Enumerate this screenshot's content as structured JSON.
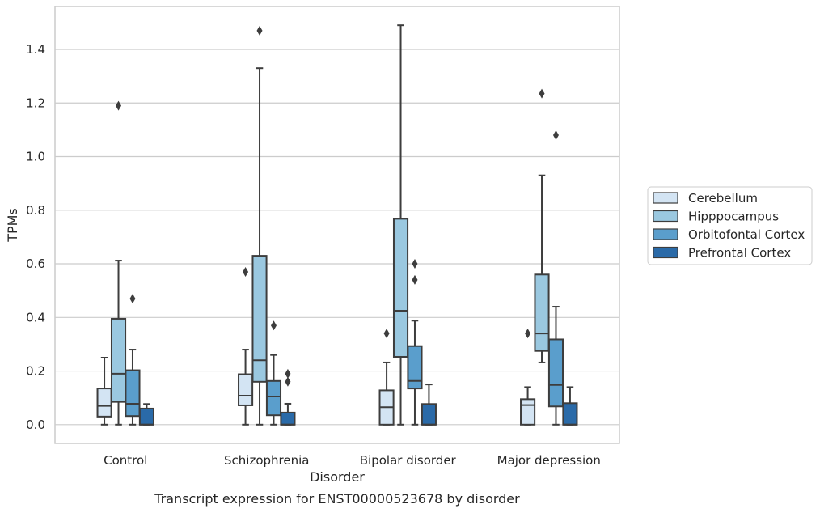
{
  "chart_data": {
    "type": "box",
    "title": "Transcript expression for ENST00000523678 by disorder",
    "xlabel": "Disorder",
    "ylabel": "TPMs",
    "ylim": [
      -0.07,
      1.56
    ],
    "yticks": [
      "0.0",
      "0.2",
      "0.4",
      "0.6",
      "0.8",
      "1.0",
      "1.2",
      "1.4"
    ],
    "grid": "horizontal",
    "legend_position": "right",
    "categories": [
      "Control",
      "Schizophrenia",
      "Bipolar disorder",
      "Major depression"
    ],
    "series": [
      {
        "name": "Cerebellum",
        "color": "#d3e4f3",
        "boxes": [
          {
            "whislo": 0.0,
            "q1": 0.03,
            "med": 0.07,
            "q3": 0.135,
            "whishi": 0.25,
            "fliers": []
          },
          {
            "whislo": 0.0,
            "q1": 0.072,
            "med": 0.108,
            "q3": 0.188,
            "whishi": 0.28,
            "fliers": [
              0.57
            ]
          },
          {
            "whislo": 0.0,
            "q1": 0.0,
            "med": 0.065,
            "q3": 0.128,
            "whishi": 0.232,
            "fliers": [
              0.34
            ]
          },
          {
            "whislo": 0.0,
            "q1": 0.0,
            "med": 0.073,
            "q3": 0.095,
            "whishi": 0.14,
            "fliers": [
              0.34
            ]
          }
        ]
      },
      {
        "name": "Hipppocampus",
        "color": "#9ac8e0",
        "boxes": [
          {
            "whislo": 0.0,
            "q1": 0.085,
            "med": 0.19,
            "q3": 0.395,
            "whishi": 0.612,
            "fliers": [
              1.19
            ]
          },
          {
            "whislo": 0.0,
            "q1": 0.16,
            "med": 0.24,
            "q3": 0.63,
            "whishi": 1.33,
            "fliers": [
              1.47
            ]
          },
          {
            "whislo": 0.0,
            "q1": 0.253,
            "med": 0.425,
            "q3": 0.768,
            "whishi": 1.49,
            "fliers": []
          },
          {
            "whislo": 0.232,
            "q1": 0.275,
            "med": 0.34,
            "q3": 0.56,
            "whishi": 0.93,
            "fliers": [
              1.235
            ]
          }
        ]
      },
      {
        "name": "Orbitofontal Cortex",
        "color": "#5a9ecc",
        "boxes": [
          {
            "whislo": 0.0,
            "q1": 0.032,
            "med": 0.078,
            "q3": 0.203,
            "whishi": 0.28,
            "fliers": [
              0.47
            ]
          },
          {
            "whislo": 0.0,
            "q1": 0.035,
            "med": 0.105,
            "q3": 0.163,
            "whishi": 0.26,
            "fliers": [
              0.37
            ]
          },
          {
            "whislo": 0.0,
            "q1": 0.135,
            "med": 0.163,
            "q3": 0.293,
            "whishi": 0.388,
            "fliers": [
              0.6,
              0.54
            ]
          },
          {
            "whislo": 0.0,
            "q1": 0.068,
            "med": 0.148,
            "q3": 0.318,
            "whishi": 0.44,
            "fliers": [
              1.08
            ]
          }
        ]
      },
      {
        "name": "Prefrontal Cortex",
        "color": "#2a6aa8",
        "boxes": [
          {
            "whislo": 0.0,
            "q1": 0.0,
            "med": 0.0,
            "q3": 0.06,
            "whishi": 0.077,
            "fliers": []
          },
          {
            "whislo": 0.0,
            "q1": 0.0,
            "med": 0.0,
            "q3": 0.045,
            "whishi": 0.078,
            "fliers": [
              0.19,
              0.16
            ]
          },
          {
            "whislo": 0.0,
            "q1": 0.0,
            "med": 0.0,
            "q3": 0.077,
            "whishi": 0.15,
            "fliers": []
          },
          {
            "whislo": 0.0,
            "q1": 0.0,
            "med": 0.0,
            "q3": 0.08,
            "whishi": 0.14,
            "fliers": []
          }
        ]
      }
    ]
  }
}
